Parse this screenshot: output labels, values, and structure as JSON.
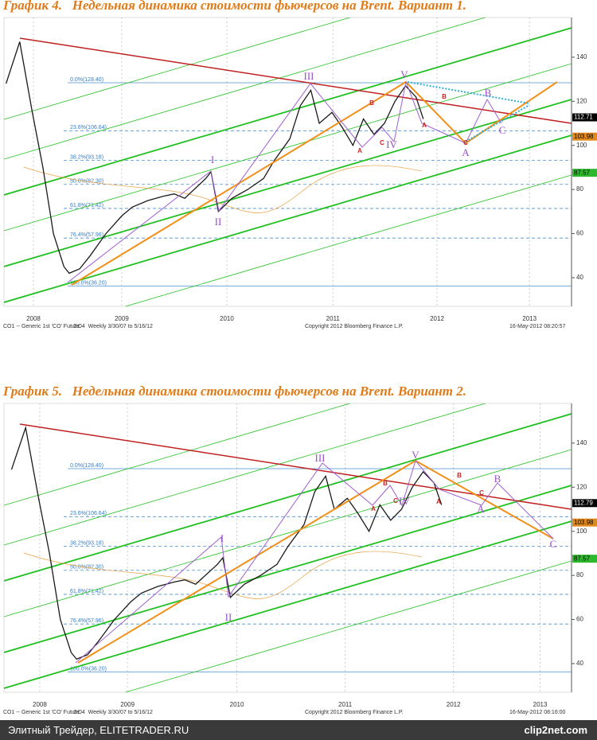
{
  "chart_data": [
    {
      "type": "line",
      "title": "График 4.   Недельная динамика стоимости фьючерсов на Brent. Вариант 1.",
      "x": [
        2008.4,
        2008.53,
        2008.65,
        2008.75,
        2008.85,
        2008.95,
        2009.0,
        2009.1,
        2009.2,
        2009.35,
        2009.5,
        2009.6,
        2009.75,
        2009.9,
        2010.0,
        2010.1,
        2010.3,
        2010.35,
        2010.42,
        2010.55,
        2010.7,
        2010.85,
        2010.95,
        2011.1,
        2011.2,
        2011.3,
        2011.38,
        2011.5,
        2011.6,
        2011.7,
        2011.8,
        2011.9,
        2012.0,
        2012.1,
        2012.2,
        2012.3,
        2012.37
      ],
      "values": [
        128,
        147,
        115,
        90,
        60,
        45,
        42,
        44,
        50,
        60,
        68,
        72,
        75,
        77,
        78,
        76,
        85,
        88,
        70,
        76,
        80,
        85,
        93,
        103,
        118,
        125,
        110,
        115,
        108,
        100,
        112,
        105,
        110,
        120,
        127,
        122,
        112
      ],
      "color": "#1a1a1a",
      "xlim": [
        2008.38,
        2013.78
      ],
      "xticks": [
        {
          "value": 2008.66,
          "label": "2008"
        },
        {
          "value": 2009.5,
          "label": "2009"
        },
        {
          "value": 2010.5,
          "label": "2010"
        },
        {
          "value": 2011.51,
          "label": "2011"
        },
        {
          "value": 2012.5,
          "label": "2012"
        },
        {
          "value": 2013.38,
          "label": "2013"
        }
      ],
      "ylim": [
        27,
        158
      ],
      "yticks": [
        40,
        60,
        80,
        100,
        120,
        140
      ],
      "fib_levels": [
        {
          "value": 128.4,
          "label": "0.0%(128.40)"
        },
        {
          "value": 106.64,
          "label": "23.6%(106.64)"
        },
        {
          "value": 93.18,
          "label": "38.2%(93.18)"
        },
        {
          "value": 82.3,
          "label": "50.0%(82.30)"
        },
        {
          "value": 71.42,
          "label": "61.8%(71.42)"
        },
        {
          "value": 57.96,
          "label": "76.4%(57.96)"
        },
        {
          "value": 36.2,
          "label": "100.0%(36.20)"
        }
      ],
      "price_labels": {
        "values": [
          112.71,
          103.98,
          87.57
        ],
        "colors": [
          "#000000",
          "#e08a1e",
          "#2db82d"
        ]
      },
      "wave_labels": [
        "I",
        "II",
        "III",
        "IV",
        "V",
        "A",
        "B",
        "C"
      ],
      "abc_labels": [
        "A",
        "B",
        "C",
        "A",
        "B",
        "C"
      ],
      "info": [
        "CO1 -- Generic 1st 'CO' Future",
        "GO4  Weekly 3/30/07 to 5/16/12",
        "Copyright 2012 Bloomberg Finance L.P.",
        "16-May-2012 08:20:57"
      ]
    },
    {
      "type": "line",
      "title": "График 5.   Недельная динамика стоимости фьючерсов на Brent. Вариант 2.",
      "x": [
        2008.4,
        2008.53,
        2008.65,
        2008.75,
        2008.85,
        2008.95,
        2009.0,
        2009.1,
        2009.2,
        2009.35,
        2009.5,
        2009.6,
        2009.75,
        2009.9,
        2010.0,
        2010.1,
        2010.3,
        2010.35,
        2010.42,
        2010.55,
        2010.7,
        2010.85,
        2010.95,
        2011.1,
        2011.2,
        2011.3,
        2011.38,
        2011.5,
        2011.6,
        2011.7,
        2011.8,
        2011.9,
        2012.0,
        2012.1,
        2012.2,
        2012.3,
        2012.37
      ],
      "values": [
        128,
        147,
        115,
        90,
        60,
        45,
        42,
        44,
        50,
        60,
        68,
        72,
        75,
        77,
        78,
        76,
        85,
        88,
        70,
        76,
        80,
        85,
        93,
        103,
        118,
        125,
        110,
        115,
        108,
        100,
        112,
        105,
        110,
        120,
        127,
        122,
        112
      ],
      "color": "#1a1a1a",
      "xlim": [
        2008.33,
        2013.57
      ],
      "xticks": [
        {
          "value": 2008.66,
          "label": "2008"
        },
        {
          "value": 2009.47,
          "label": "2009"
        },
        {
          "value": 2010.48,
          "label": "2010"
        },
        {
          "value": 2011.48,
          "label": "2011"
        },
        {
          "value": 2012.48,
          "label": "2012"
        },
        {
          "value": 2013.28,
          "label": "2013"
        }
      ],
      "ylim": [
        27,
        158
      ],
      "yticks": [
        40,
        60,
        80,
        100,
        120,
        140
      ],
      "fib_levels": [
        {
          "value": 128.4,
          "label": "0.0%(128.40)"
        },
        {
          "value": 106.64,
          "label": "23.6%(106.64)"
        },
        {
          "value": 93.18,
          "label": "38.2%(93.18)"
        },
        {
          "value": 82.3,
          "label": "50.0%(82.30)"
        },
        {
          "value": 71.42,
          "label": "61.8%(71.42)"
        },
        {
          "value": 57.96,
          "label": "76.4%(57.96)"
        },
        {
          "value": 36.2,
          "label": "100.0%(36.20)"
        }
      ],
      "price_labels": {
        "values": [
          112.79,
          103.98,
          87.57
        ],
        "colors": [
          "#000000",
          "#e08a1e",
          "#2db82d"
        ]
      },
      "wave_labels": [
        "I",
        "II",
        "III",
        "IV",
        "V",
        "A",
        "B",
        "C"
      ],
      "abc_labels": [
        "A",
        "B",
        "C",
        "A",
        "B",
        "C"
      ],
      "info": [
        "CO1 -- Generic 1st 'CO' Future",
        "GO4  Weekly 3/30/07 to 5/16/12",
        "Copyright 2012 Bloomberg Finance L.P.",
        "16-May-2012 08:16:00"
      ]
    }
  ],
  "footer": {
    "left": "Элитный Трейдер, ELITETRADER.RU",
    "right": "clip2net.com"
  }
}
